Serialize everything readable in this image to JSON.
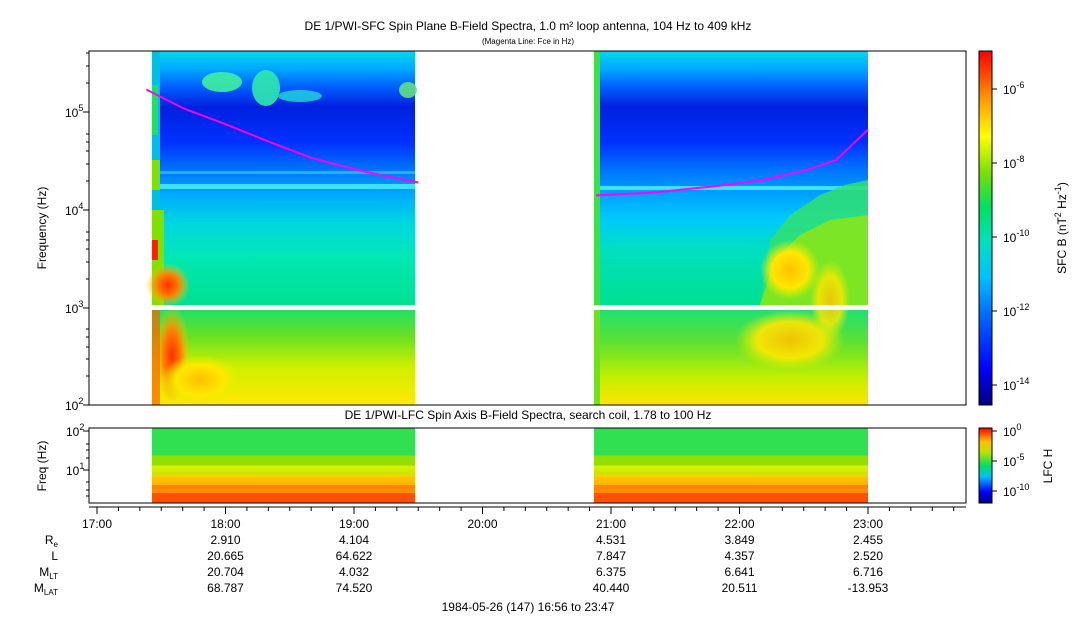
{
  "chart_data": [
    {
      "type": "heatmap",
      "title": "DE 1/PWI-SFC  Spin Plane B-Field Spectra, 1.0 m² loop antenna, 104 Hz to 409 kHz",
      "subtitle": "(Magenta Line: Fce in Hz)",
      "ylabel": "Frequency (Hz)",
      "yscale": "log",
      "ylim": [
        100,
        409000
      ],
      "y_ticks": [
        {
          "label": "10",
          "sup": "2",
          "value": 100
        },
        {
          "label": "10",
          "sup": "3",
          "value": 1000
        },
        {
          "label": "10",
          "sup": "4",
          "value": 10000
        },
        {
          "label": "10",
          "sup": "5",
          "value": 100000
        }
      ],
      "x_range": [
        "16:56",
        "23:47"
      ],
      "data_intervals": [
        {
          "start": "17:23",
          "end": "19:30"
        },
        {
          "start": "20:53",
          "end": "23:00"
        }
      ],
      "colorbar": {
        "label_main": "SFC B (nT",
        "label_sup1": "2",
        "label_mid": " Hz",
        "label_sup2": "-1",
        "label_end": ")",
        "scale": "log",
        "ticks": [
          {
            "label": "10",
            "sup": "-6"
          },
          {
            "label": "10",
            "sup": "-8"
          },
          {
            "label": "10",
            "sup": "-10"
          },
          {
            "label": "10",
            "sup": "-12"
          },
          {
            "label": "10",
            "sup": "-14"
          }
        ],
        "colors": [
          "#000080",
          "#0000ff",
          "#0080ff",
          "#00e0e0",
          "#00e060",
          "#80e000",
          "#ffff00",
          "#ffa000",
          "#ff4000",
          "#ff0000"
        ]
      },
      "series": [
        {
          "name": "Fce in Hz",
          "color": "#ff00ff",
          "points": [
            {
              "t": "17:23",
              "f": 170000
            },
            {
              "t": "17:40",
              "f": 110000
            },
            {
              "t": "18:00",
              "f": 75000
            },
            {
              "t": "18:20",
              "f": 50000
            },
            {
              "t": "18:40",
              "f": 34000
            },
            {
              "t": "19:00",
              "f": 26000
            },
            {
              "t": "19:15",
              "f": 22000
            },
            {
              "t": "19:30",
              "f": 19000
            },
            {
              "t": "20:53",
              "f": 14000
            },
            {
              "t": "21:20",
              "f": 15000
            },
            {
              "t": "21:50",
              "f": 17500
            },
            {
              "t": "22:10",
              "f": 20000
            },
            {
              "t": "22:30",
              "f": 25000
            },
            {
              "t": "22:45",
              "f": 32000
            },
            {
              "t": "23:00",
              "f": 66000
            }
          ]
        }
      ]
    },
    {
      "type": "heatmap",
      "title": "DE 1/PWI-LFC  Spin Axis B-Field Spectra, search coil, 1.78 to 100 Hz",
      "ylabel": "Freq (Hz)",
      "yscale": "log",
      "ylim": [
        1.78,
        100
      ],
      "y_ticks": [
        {
          "label": "10",
          "sup": "1",
          "value": 10
        },
        {
          "label": "10",
          "sup": "2",
          "value": 100
        }
      ],
      "data_intervals": [
        {
          "start": "17:23",
          "end": "19:30"
        },
        {
          "start": "20:53",
          "end": "23:00"
        }
      ],
      "colorbar": {
        "label": "LFC H",
        "scale": "log",
        "ticks": [
          {
            "label": "10",
            "sup": "0"
          },
          {
            "label": "10",
            "sup": "-5"
          },
          {
            "label": "10",
            "sup": "-10"
          }
        ]
      }
    }
  ],
  "x_axis": {
    "ticks": [
      "17:00",
      "18:00",
      "19:00",
      "20:00",
      "21:00",
      "22:00",
      "23:00"
    ],
    "footer": "1984-05-26 (147) 16:56 to 23:47"
  },
  "ephemeris": {
    "rows": [
      {
        "label": "R",
        "sub": "e",
        "values": [
          "2.910",
          "4.104",
          "",
          "4.531",
          "3.849",
          "2.455"
        ]
      },
      {
        "label": "L",
        "sub": "",
        "values": [
          "20.665",
          "64.622",
          "",
          "7.847",
          "4.357",
          "2.520"
        ]
      },
      {
        "label": "M",
        "sub": "LT",
        "values": [
          "20.704",
          "4.032",
          "",
          "6.375",
          "6.641",
          "6.716"
        ]
      },
      {
        "label": "M",
        "sub": "LAT",
        "values": [
          "68.787",
          "74.520",
          "",
          "40.440",
          "20.511",
          "-13.953"
        ]
      }
    ]
  }
}
